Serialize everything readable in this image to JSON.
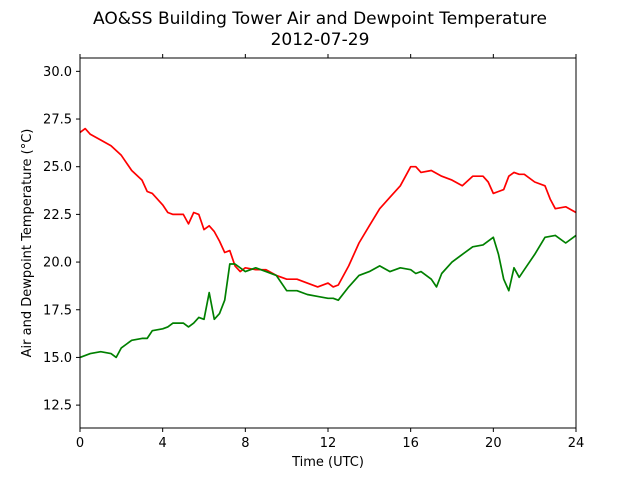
{
  "chart_data": {
    "type": "line",
    "title": "AO&SS Building Tower Air and Dewpoint Temperature",
    "subtitle": "2012-07-29",
    "xlabel": "Time (UTC)",
    "ylabel": "Air and Dewpoint Temperature (°C)",
    "xlim": [
      0,
      24
    ],
    "ylim": [
      11.3,
      30.7
    ],
    "xticks": [
      0,
      4,
      8,
      12,
      16,
      20,
      24
    ],
    "xtick_labels": [
      "0",
      "4",
      "8",
      "12",
      "16",
      "20",
      "24"
    ],
    "yticks": [
      12.5,
      15.0,
      17.5,
      20.0,
      22.5,
      25.0,
      27.5,
      30.0
    ],
    "ytick_labels": [
      "12.5",
      "15.0",
      "17.5",
      "20.0",
      "22.5",
      "25.0",
      "27.5",
      "30.0"
    ],
    "grid": false,
    "series": [
      {
        "color": "#ff0000",
        "x": [
          0,
          0.25,
          0.5,
          1,
          1.5,
          2,
          2.5,
          3,
          3.25,
          3.5,
          4,
          4.25,
          4.5,
          5,
          5.25,
          5.5,
          5.75,
          6,
          6.25,
          6.5,
          6.75,
          7,
          7.25,
          7.5,
          7.75,
          8,
          8.5,
          9,
          9.5,
          10,
          10.5,
          11,
          11.5,
          12,
          12.25,
          12.5,
          13,
          13.5,
          14,
          14.5,
          15,
          15.5,
          16,
          16.25,
          16.5,
          17,
          17.5,
          18,
          18.5,
          19,
          19.5,
          19.75,
          20,
          20.25,
          20.5,
          20.75,
          21,
          21.25,
          21.5,
          22,
          22.5,
          22.75,
          23,
          23.5,
          24
        ],
        "y": [
          26.8,
          27.0,
          26.7,
          26.4,
          26.1,
          25.6,
          24.8,
          24.3,
          23.7,
          23.6,
          23.0,
          22.6,
          22.5,
          22.5,
          22.0,
          22.6,
          22.5,
          21.7,
          21.9,
          21.6,
          21.1,
          20.5,
          20.6,
          19.8,
          19.5,
          19.7,
          19.6,
          19.6,
          19.3,
          19.1,
          19.1,
          18.9,
          18.7,
          18.9,
          18.7,
          18.8,
          19.8,
          21.0,
          21.9,
          22.8,
          23.4,
          24.0,
          25.0,
          25.0,
          24.7,
          24.8,
          24.5,
          24.3,
          24.0,
          24.5,
          24.5,
          24.2,
          23.6,
          23.7,
          23.8,
          24.5,
          24.7,
          24.6,
          24.6,
          24.2,
          24.0,
          23.3,
          22.8,
          22.9,
          22.6
        ]
      },
      {
        "color": "#008000",
        "x": [
          0,
          0.5,
          1,
          1.5,
          1.75,
          2,
          2.5,
          3,
          3.25,
          3.5,
          4,
          4.25,
          4.5,
          5,
          5.25,
          5.5,
          5.75,
          6,
          6.25,
          6.5,
          6.75,
          7,
          7.25,
          7.5,
          8,
          8.5,
          9,
          9.5,
          10,
          10.5,
          11,
          11.5,
          12,
          12.25,
          12.5,
          13,
          13.5,
          14,
          14.5,
          15,
          15.5,
          16,
          16.25,
          16.5,
          17,
          17.25,
          17.5,
          18,
          18.5,
          19,
          19.5,
          20,
          20.25,
          20.5,
          20.75,
          21,
          21.25,
          21.5,
          22,
          22.5,
          23,
          23.5,
          24
        ],
        "y": [
          15.0,
          15.2,
          15.3,
          15.2,
          15.0,
          15.5,
          15.9,
          16.0,
          16.0,
          16.4,
          16.5,
          16.6,
          16.8,
          16.8,
          16.6,
          16.8,
          17.1,
          17.0,
          18.4,
          17.0,
          17.3,
          18.0,
          19.9,
          19.9,
          19.5,
          19.7,
          19.5,
          19.3,
          18.5,
          18.5,
          18.3,
          18.2,
          18.1,
          18.1,
          18.0,
          18.7,
          19.3,
          19.5,
          19.8,
          19.5,
          19.7,
          19.6,
          19.4,
          19.5,
          19.1,
          18.7,
          19.4,
          20.0,
          20.4,
          20.8,
          20.9,
          21.3,
          20.4,
          19.1,
          18.5,
          19.7,
          19.2,
          19.6,
          20.4,
          21.3,
          21.4,
          21.0,
          21.4
        ]
      }
    ]
  }
}
